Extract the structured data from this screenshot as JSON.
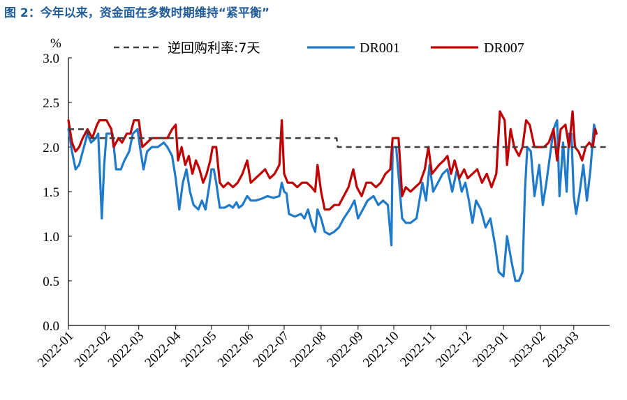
{
  "figure": {
    "title": "图 2：今年以来，资金面在多数时期维持“紧平衡”",
    "title_color": "#1F5C99"
  },
  "chart_data": {
    "type": "line",
    "unit_label": "%",
    "ylim": [
      0.0,
      3.0
    ],
    "yticks": [
      "0.0",
      "0.5",
      "1.0",
      "1.5",
      "2.0",
      "2.5",
      "3.0"
    ],
    "xlim": [
      "2022-01-01",
      "2023-03-31"
    ],
    "xticks": [
      "2022-01",
      "2022-02",
      "2022-03",
      "2022-04",
      "2022-05",
      "2022-06",
      "2022-07",
      "2022-08",
      "2022-09",
      "2022-10",
      "2022-11",
      "2022-12",
      "2023-01",
      "2023-02",
      "2023-03"
    ],
    "legend_position": "top",
    "grid": false,
    "series": [
      {
        "name": "逆回购利率:7天",
        "color": "#404040",
        "style": "dashed",
        "points": [
          [
            "2022-01-01",
            2.2
          ],
          [
            "2022-01-17",
            2.2
          ],
          [
            "2022-01-18",
            2.1
          ],
          [
            "2022-08-14",
            2.1
          ],
          [
            "2022-08-15",
            2.0
          ],
          [
            "2023-03-31",
            2.0
          ]
        ]
      },
      {
        "name": "DR001",
        "color": "#1F7AC9",
        "style": "solid",
        "points": [
          [
            "2022-01-01",
            2.2
          ],
          [
            "2022-01-04",
            1.95
          ],
          [
            "2022-01-07",
            1.75
          ],
          [
            "2022-01-10",
            1.8
          ],
          [
            "2022-01-13",
            1.95
          ],
          [
            "2022-01-17",
            2.15
          ],
          [
            "2022-01-20",
            2.05
          ],
          [
            "2022-01-24",
            2.1
          ],
          [
            "2022-01-26",
            2.15
          ],
          [
            "2022-01-29",
            1.2
          ],
          [
            "2022-01-31",
            1.8
          ],
          [
            "2022-02-02",
            2.15
          ],
          [
            "2022-02-07",
            2.15
          ],
          [
            "2022-02-10",
            1.75
          ],
          [
            "2022-02-14",
            1.75
          ],
          [
            "2022-02-17",
            1.85
          ],
          [
            "2022-02-21",
            1.95
          ],
          [
            "2022-02-24",
            2.15
          ],
          [
            "2022-02-28",
            2.2
          ],
          [
            "2022-03-02",
            2.0
          ],
          [
            "2022-03-05",
            1.75
          ],
          [
            "2022-03-08",
            1.95
          ],
          [
            "2022-03-12",
            2.0
          ],
          [
            "2022-03-17",
            2.0
          ],
          [
            "2022-03-22",
            2.05
          ],
          [
            "2022-03-25",
            2.0
          ],
          [
            "2022-03-29",
            1.9
          ],
          [
            "2022-04-01",
            1.65
          ],
          [
            "2022-04-04",
            1.3
          ],
          [
            "2022-04-07",
            1.6
          ],
          [
            "2022-04-10",
            1.75
          ],
          [
            "2022-04-13",
            1.5
          ],
          [
            "2022-04-16",
            1.35
          ],
          [
            "2022-04-20",
            1.3
          ],
          [
            "2022-04-23",
            1.4
          ],
          [
            "2022-04-26",
            1.3
          ],
          [
            "2022-04-29",
            1.55
          ],
          [
            "2022-05-01",
            1.75
          ],
          [
            "2022-05-03",
            1.75
          ],
          [
            "2022-05-05",
            1.6
          ],
          [
            "2022-05-08",
            1.32
          ],
          [
            "2022-05-12",
            1.32
          ],
          [
            "2022-05-16",
            1.35
          ],
          [
            "2022-05-19",
            1.32
          ],
          [
            "2022-05-22",
            1.38
          ],
          [
            "2022-05-24",
            1.32
          ],
          [
            "2022-05-27",
            1.35
          ],
          [
            "2022-05-31",
            1.45
          ],
          [
            "2022-06-03",
            1.4
          ],
          [
            "2022-06-07",
            1.4
          ],
          [
            "2022-06-12",
            1.42
          ],
          [
            "2022-06-17",
            1.45
          ],
          [
            "2022-06-22",
            1.43
          ],
          [
            "2022-06-27",
            1.45
          ],
          [
            "2022-06-29",
            1.6
          ],
          [
            "2022-07-01",
            1.5
          ],
          [
            "2022-07-03",
            1.48
          ],
          [
            "2022-07-05",
            1.25
          ],
          [
            "2022-07-10",
            1.22
          ],
          [
            "2022-07-15",
            1.25
          ],
          [
            "2022-07-18",
            1.2
          ],
          [
            "2022-07-21",
            1.3
          ],
          [
            "2022-07-24",
            1.15
          ],
          [
            "2022-07-27",
            1.05
          ],
          [
            "2022-07-29",
            1.3
          ],
          [
            "2022-08-01",
            1.2
          ],
          [
            "2022-08-04",
            1.05
          ],
          [
            "2022-08-08",
            1.02
          ],
          [
            "2022-08-12",
            1.05
          ],
          [
            "2022-08-16",
            1.1
          ],
          [
            "2022-08-20",
            1.2
          ],
          [
            "2022-08-25",
            1.3
          ],
          [
            "2022-08-29",
            1.4
          ],
          [
            "2022-09-01",
            1.2
          ],
          [
            "2022-09-05",
            1.3
          ],
          [
            "2022-09-09",
            1.4
          ],
          [
            "2022-09-14",
            1.45
          ],
          [
            "2022-09-18",
            1.35
          ],
          [
            "2022-09-22",
            1.4
          ],
          [
            "2022-09-26",
            1.35
          ],
          [
            "2022-09-29",
            0.9
          ],
          [
            "2022-09-30",
            2.0
          ],
          [
            "2022-10-03",
            2.0
          ],
          [
            "2022-10-08",
            1.2
          ],
          [
            "2022-10-11",
            1.15
          ],
          [
            "2022-10-15",
            1.15
          ],
          [
            "2022-10-20",
            1.2
          ],
          [
            "2022-10-25",
            1.6
          ],
          [
            "2022-10-28",
            1.4
          ],
          [
            "2022-10-31",
            1.8
          ],
          [
            "2022-11-03",
            1.5
          ],
          [
            "2022-11-07",
            1.6
          ],
          [
            "2022-11-11",
            1.7
          ],
          [
            "2022-11-15",
            1.75
          ],
          [
            "2022-11-19",
            1.5
          ],
          [
            "2022-11-23",
            1.75
          ],
          [
            "2022-11-27",
            1.5
          ],
          [
            "2022-11-30",
            1.6
          ],
          [
            "2022-12-03",
            1.4
          ],
          [
            "2022-12-06",
            1.15
          ],
          [
            "2022-12-09",
            1.4
          ],
          [
            "2022-12-13",
            1.3
          ],
          [
            "2022-12-17",
            1.1
          ],
          [
            "2022-12-21",
            1.2
          ],
          [
            "2022-12-25",
            0.9
          ],
          [
            "2022-12-28",
            0.6
          ],
          [
            "2023-01-01",
            0.55
          ],
          [
            "2023-01-04",
            1.0
          ],
          [
            "2023-01-08",
            0.7
          ],
          [
            "2023-01-11",
            0.5
          ],
          [
            "2023-01-14",
            0.5
          ],
          [
            "2023-01-17",
            0.6
          ],
          [
            "2023-01-19",
            1.5
          ],
          [
            "2023-01-21",
            2.0
          ],
          [
            "2023-01-24",
            1.95
          ],
          [
            "2023-01-27",
            1.45
          ],
          [
            "2023-01-31",
            1.8
          ],
          [
            "2023-02-03",
            1.35
          ],
          [
            "2023-02-06",
            1.6
          ],
          [
            "2023-02-09",
            1.9
          ],
          [
            "2023-02-12",
            2.2
          ],
          [
            "2023-02-15",
            2.3
          ],
          [
            "2023-02-17",
            1.45
          ],
          [
            "2023-02-20",
            2.05
          ],
          [
            "2023-02-23",
            1.5
          ],
          [
            "2023-02-25",
            2.15
          ],
          [
            "2023-02-27",
            2.15
          ],
          [
            "2023-03-01",
            1.45
          ],
          [
            "2023-03-03",
            1.25
          ],
          [
            "2023-03-06",
            1.5
          ],
          [
            "2023-03-09",
            1.8
          ],
          [
            "2023-03-12",
            1.4
          ],
          [
            "2023-03-15",
            1.75
          ],
          [
            "2023-03-18",
            2.25
          ],
          [
            "2023-03-20",
            2.15
          ]
        ]
      },
      {
        "name": "DR007",
        "color": "#C00000",
        "style": "solid",
        "points": [
          [
            "2022-01-01",
            2.3
          ],
          [
            "2022-01-04",
            2.05
          ],
          [
            "2022-01-07",
            1.95
          ],
          [
            "2022-01-10",
            2.0
          ],
          [
            "2022-01-13",
            2.1
          ],
          [
            "2022-01-17",
            2.2
          ],
          [
            "2022-01-21",
            2.1
          ],
          [
            "2022-01-25",
            2.25
          ],
          [
            "2022-01-27",
            2.3
          ],
          [
            "2022-02-02",
            2.3
          ],
          [
            "2022-02-06",
            2.2
          ],
          [
            "2022-02-08",
            2.0
          ],
          [
            "2022-02-12",
            2.1
          ],
          [
            "2022-02-15",
            2.05
          ],
          [
            "2022-02-19",
            2.15
          ],
          [
            "2022-02-22",
            2.15
          ],
          [
            "2022-02-25",
            2.3
          ],
          [
            "2022-03-01",
            2.3
          ],
          [
            "2022-03-04",
            2.0
          ],
          [
            "2022-03-08",
            2.05
          ],
          [
            "2022-03-12",
            2.1
          ],
          [
            "2022-03-16",
            2.1
          ],
          [
            "2022-03-20",
            2.1
          ],
          [
            "2022-03-25",
            2.1
          ],
          [
            "2022-03-29",
            2.2
          ],
          [
            "2022-04-01",
            2.25
          ],
          [
            "2022-04-03",
            1.85
          ],
          [
            "2022-04-06",
            2.0
          ],
          [
            "2022-04-09",
            1.8
          ],
          [
            "2022-04-12",
            1.9
          ],
          [
            "2022-04-15",
            1.7
          ],
          [
            "2022-04-18",
            1.85
          ],
          [
            "2022-04-21",
            1.75
          ],
          [
            "2022-04-24",
            1.6
          ],
          [
            "2022-04-27",
            1.7
          ],
          [
            "2022-04-30",
            1.85
          ],
          [
            "2022-05-02",
            2.0
          ],
          [
            "2022-05-05",
            2.0
          ],
          [
            "2022-05-08",
            1.6
          ],
          [
            "2022-05-11",
            1.55
          ],
          [
            "2022-05-15",
            1.6
          ],
          [
            "2022-05-19",
            1.55
          ],
          [
            "2022-05-23",
            1.6
          ],
          [
            "2022-05-27",
            1.7
          ],
          [
            "2022-05-31",
            1.85
          ],
          [
            "2022-06-03",
            1.6
          ],
          [
            "2022-06-07",
            1.65
          ],
          [
            "2022-06-11",
            1.7
          ],
          [
            "2022-06-15",
            1.75
          ],
          [
            "2022-06-19",
            1.65
          ],
          [
            "2022-06-23",
            1.7
          ],
          [
            "2022-06-27",
            1.8
          ],
          [
            "2022-06-29",
            2.3
          ],
          [
            "2022-07-01",
            1.7
          ],
          [
            "2022-07-04",
            1.6
          ],
          [
            "2022-07-08",
            1.6
          ],
          [
            "2022-07-12",
            1.55
          ],
          [
            "2022-07-16",
            1.6
          ],
          [
            "2022-07-20",
            1.6
          ],
          [
            "2022-07-24",
            1.55
          ],
          [
            "2022-07-27",
            1.5
          ],
          [
            "2022-07-29",
            1.8
          ],
          [
            "2022-08-01",
            1.5
          ],
          [
            "2022-08-04",
            1.3
          ],
          [
            "2022-08-08",
            1.3
          ],
          [
            "2022-08-12",
            1.35
          ],
          [
            "2022-08-16",
            1.35
          ],
          [
            "2022-08-20",
            1.45
          ],
          [
            "2022-08-24",
            1.55
          ],
          [
            "2022-08-28",
            1.75
          ],
          [
            "2022-08-31",
            1.55
          ],
          [
            "2022-09-04",
            1.45
          ],
          [
            "2022-09-08",
            1.6
          ],
          [
            "2022-09-12",
            1.6
          ],
          [
            "2022-09-16",
            1.55
          ],
          [
            "2022-09-20",
            1.6
          ],
          [
            "2022-09-24",
            1.7
          ],
          [
            "2022-09-28",
            1.75
          ],
          [
            "2022-09-30",
            2.1
          ],
          [
            "2022-10-05",
            2.1
          ],
          [
            "2022-10-08",
            1.45
          ],
          [
            "2022-10-11",
            1.55
          ],
          [
            "2022-10-15",
            1.5
          ],
          [
            "2022-10-19",
            1.55
          ],
          [
            "2022-10-23",
            1.6
          ],
          [
            "2022-10-27",
            1.75
          ],
          [
            "2022-10-30",
            2.0
          ],
          [
            "2022-11-02",
            1.7
          ],
          [
            "2022-11-05",
            1.75
          ],
          [
            "2022-11-08",
            1.8
          ],
          [
            "2022-11-12",
            1.85
          ],
          [
            "2022-11-15",
            1.9
          ],
          [
            "2022-11-18",
            1.7
          ],
          [
            "2022-11-21",
            1.85
          ],
          [
            "2022-11-25",
            1.65
          ],
          [
            "2022-11-29",
            1.75
          ],
          [
            "2022-12-02",
            1.65
          ],
          [
            "2022-12-06",
            1.7
          ],
          [
            "2022-12-10",
            1.75
          ],
          [
            "2022-12-14",
            1.6
          ],
          [
            "2022-12-18",
            1.7
          ],
          [
            "2022-12-22",
            1.55
          ],
          [
            "2022-12-26",
            1.7
          ],
          [
            "2022-12-29",
            2.4
          ],
          [
            "2023-01-02",
            2.3
          ],
          [
            "2023-01-04",
            1.8
          ],
          [
            "2023-01-07",
            2.2
          ],
          [
            "2023-01-10",
            2.0
          ],
          [
            "2023-01-14",
            1.9
          ],
          [
            "2023-01-17",
            2.0
          ],
          [
            "2023-01-20",
            2.3
          ],
          [
            "2023-01-23",
            2.25
          ],
          [
            "2023-01-27",
            2.0
          ],
          [
            "2023-01-31",
            2.0
          ],
          [
            "2023-02-04",
            2.0
          ],
          [
            "2023-02-08",
            2.05
          ],
          [
            "2023-02-12",
            2.2
          ],
          [
            "2023-02-15",
            1.85
          ],
          [
            "2023-02-18",
            2.2
          ],
          [
            "2023-02-22",
            2.25
          ],
          [
            "2023-02-25",
            2.0
          ],
          [
            "2023-02-28",
            2.4
          ],
          [
            "2023-03-02",
            2.0
          ],
          [
            "2023-03-05",
            1.95
          ],
          [
            "2023-03-08",
            1.85
          ],
          [
            "2023-03-11",
            2.0
          ],
          [
            "2023-03-14",
            2.05
          ],
          [
            "2023-03-17",
            2.0
          ],
          [
            "2023-03-19",
            2.2
          ],
          [
            "2023-03-20",
            2.15
          ]
        ]
      }
    ]
  }
}
